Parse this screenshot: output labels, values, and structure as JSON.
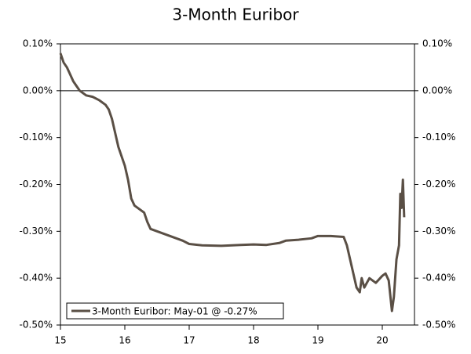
{
  "chart_data": {
    "type": "line",
    "title": "3-Month Euribor",
    "x": [
      15.0,
      15.05,
      15.1,
      15.15,
      15.2,
      15.25,
      15.3,
      15.35,
      15.4,
      15.5,
      15.6,
      15.7,
      15.75,
      15.8,
      15.85,
      15.9,
      15.95,
      16.0,
      16.05,
      16.1,
      16.15,
      16.2,
      16.25,
      16.3,
      16.35,
      16.4,
      16.5,
      16.6,
      16.7,
      16.8,
      16.9,
      17.0,
      17.2,
      17.5,
      17.8,
      18.0,
      18.2,
      18.4,
      18.5,
      18.7,
      18.9,
      19.0,
      19.2,
      19.4,
      19.45,
      19.5,
      19.55,
      19.6,
      19.65,
      19.68,
      19.72,
      19.8,
      19.9,
      20.0,
      20.05,
      20.1,
      20.15,
      20.18,
      20.22,
      20.26,
      20.28,
      20.3,
      20.32,
      20.34
    ],
    "series": [
      {
        "name": "3-Month Euribor: May-01 @ -0.27%",
        "color": "#5a4f45",
        "values": [
          0.08,
          0.06,
          0.05,
          0.035,
          0.02,
          0.01,
          0.0,
          -0.005,
          -0.01,
          -0.013,
          -0.02,
          -0.03,
          -0.04,
          -0.06,
          -0.09,
          -0.12,
          -0.14,
          -0.16,
          -0.19,
          -0.23,
          -0.245,
          -0.25,
          -0.255,
          -0.26,
          -0.28,
          -0.295,
          -0.3,
          -0.305,
          -0.31,
          -0.315,
          -0.32,
          -0.327,
          -0.33,
          -0.331,
          -0.329,
          -0.328,
          -0.329,
          -0.325,
          -0.32,
          -0.318,
          -0.315,
          -0.31,
          -0.31,
          -0.312,
          -0.33,
          -0.36,
          -0.39,
          -0.42,
          -0.43,
          -0.4,
          -0.42,
          -0.4,
          -0.41,
          -0.395,
          -0.39,
          -0.405,
          -0.47,
          -0.44,
          -0.36,
          -0.33,
          -0.22,
          -0.25,
          -0.19,
          -0.27
        ]
      }
    ],
    "xlim": [
      15,
      20.5
    ],
    "xticks": [
      15,
      16,
      17,
      18,
      19,
      20
    ],
    "ylim": [
      -0.5,
      0.1
    ],
    "yticks": [
      {
        "value": 0.1,
        "label": "0.10%"
      },
      {
        "value": 0,
        "label": "0.00%"
      },
      {
        "value": -0.1,
        "label": "-0.10%"
      },
      {
        "value": -0.2,
        "label": "-0.20%"
      },
      {
        "value": -0.3,
        "label": "-0.30%"
      },
      {
        "value": -0.4,
        "label": "-0.40%"
      },
      {
        "value": -0.5,
        "label": "-0.50%"
      }
    ],
    "y2lim": [
      -0.5,
      0.1
    ],
    "y2ticks": [
      {
        "value": 0.1,
        "label": "0.10%"
      },
      {
        "value": 0,
        "label": "0.00%"
      },
      {
        "value": -0.1,
        "label": "-0.10%"
      },
      {
        "value": -0.2,
        "label": "-0.20%"
      },
      {
        "value": -0.3,
        "label": "-0.30%"
      },
      {
        "value": -0.4,
        "label": "-0.40%"
      },
      {
        "value": -0.5,
        "label": "-0.50%"
      }
    ],
    "legend": "lower left"
  }
}
